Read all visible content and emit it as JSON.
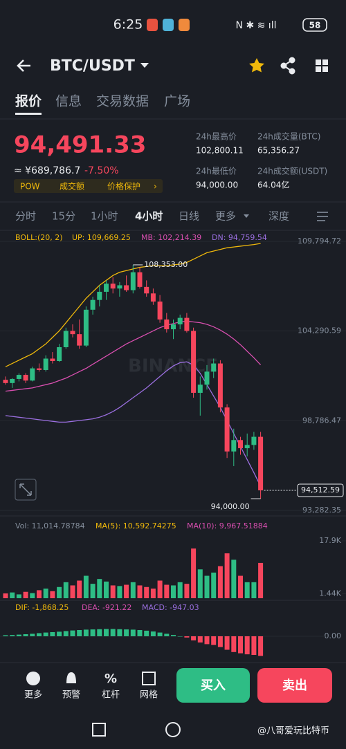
{
  "status_bar": {
    "time": "6:25",
    "battery": "58"
  },
  "header": {
    "pair": "BTC/USDT"
  },
  "tabs": [
    "报价",
    "信息",
    "交易数据",
    "广场"
  ],
  "price": {
    "last": "94,491.33",
    "cny": "≈ ¥689,786.7",
    "change": "-7.50%",
    "tags": [
      "POW",
      "成交额",
      "价格保护"
    ]
  },
  "stats": [
    {
      "label": "24h最高价",
      "value": "102,800.11"
    },
    {
      "label": "24h成交量(BTC)",
      "value": "65,356.27"
    },
    {
      "label": "24h最低价",
      "value": "94,000.00"
    },
    {
      "label": "24h成交额(USDT)",
      "value": "64.04亿"
    }
  ],
  "intervals": [
    "分时",
    "15分",
    "1小时",
    "4小时",
    "日线",
    "更多",
    "深度"
  ],
  "chart_data": {
    "type": "candlestick",
    "legend": [
      "BOLL:(20, 2)",
      "UP: 109,669.25",
      "MB: 102,214.39",
      "DN: 94,759.54"
    ],
    "watermark": "BINANCE",
    "ylim": [
      93282.35,
      109794.72
    ],
    "yticks": [
      {
        "value": 109794.72,
        "label": "109,794.72"
      },
      {
        "value": 104290.59,
        "label": "104,290.59"
      },
      {
        "value": 98786.47,
        "label": "98,786.47"
      },
      {
        "value": 93282.35,
        "label": "93,282.35"
      }
    ],
    "up_color": "#2ebd85",
    "down_color": "#f6465d",
    "ohlc": [
      [
        101300,
        101500,
        101000,
        101100
      ],
      [
        101100,
        101400,
        100800,
        101350
      ],
      [
        101350,
        101700,
        101200,
        101600
      ],
      [
        101600,
        101700,
        101100,
        101250
      ],
      [
        101250,
        102100,
        101200,
        102000
      ],
      [
        102000,
        102300,
        101800,
        101900
      ],
      [
        101900,
        102800,
        101800,
        102600
      ],
      [
        102600,
        103000,
        102300,
        102450
      ],
      [
        102450,
        103500,
        102400,
        103300
      ],
      [
        103300,
        104500,
        103200,
        104300
      ],
      [
        104300,
        104700,
        103900,
        104100
      ],
      [
        104100,
        105000,
        103200,
        103400
      ],
      [
        103400,
        105800,
        103300,
        105600
      ],
      [
        105600,
        106400,
        105300,
        106200
      ],
      [
        106200,
        107100,
        105800,
        106700
      ],
      [
        106700,
        107400,
        106200,
        107200
      ],
      [
        107200,
        107600,
        106600,
        106900
      ],
      [
        106900,
        107300,
        106400,
        107100
      ],
      [
        107100,
        107700,
        106700,
        106800
      ],
      [
        106800,
        108353,
        106600,
        107900
      ],
      [
        107900,
        108200,
        106900,
        107000
      ],
      [
        107000,
        107400,
        106400,
        106600
      ],
      [
        106600,
        106900,
        105900,
        106100
      ],
      [
        106100,
        106500,
        104800,
        105000
      ],
      [
        105000,
        105400,
        104200,
        104400
      ],
      [
        104400,
        105000,
        103800,
        104700
      ],
      [
        104700,
        105300,
        104400,
        105100
      ],
      [
        105100,
        105400,
        104200,
        104300
      ],
      [
        104300,
        104500,
        100200,
        100500
      ],
      [
        100500,
        101500,
        99100,
        101000
      ],
      [
        101000,
        102200,
        100700,
        101800
      ],
      [
        101800,
        102600,
        101400,
        102300
      ],
      [
        102300,
        102500,
        99300,
        99600
      ],
      [
        99600,
        99800,
        96500,
        96900
      ],
      [
        96900,
        98300,
        96000,
        97600
      ],
      [
        97600,
        97800,
        96700,
        97100
      ],
      [
        97100,
        98000,
        96600,
        97300
      ],
      [
        97300,
        98100,
        97000,
        97800
      ],
      [
        97800,
        98100,
        94000,
        94512.59
      ]
    ],
    "bands": [
      {
        "color": "#f0b90b",
        "values": [
          102100,
          102300,
          102500,
          102700,
          102900,
          103200,
          103500,
          103900,
          104300,
          104800,
          105300,
          105800,
          106300,
          106700,
          107100,
          107400,
          107700,
          107900,
          108000,
          108100,
          108200,
          108250,
          108300,
          108300,
          108300,
          108350,
          108400,
          108500,
          108700,
          108900,
          109100,
          109200,
          109300,
          109400,
          109450,
          109500,
          109550,
          109600,
          109669.25
        ]
      },
      {
        "color": "#d94fb0",
        "values": [
          100600,
          100650,
          100700,
          100750,
          100800,
          100900,
          101000,
          101100,
          101250,
          101400,
          101600,
          101800,
          102000,
          102250,
          102500,
          102750,
          103000,
          103250,
          103500,
          103700,
          103900,
          104100,
          104300,
          104500,
          104650,
          104750,
          104850,
          104900,
          104850,
          104800,
          104700,
          104550,
          104350,
          104100,
          103800,
          103450,
          103050,
          102650,
          102214.39
        ]
      },
      {
        "color": "#9b6fe0",
        "values": [
          99100,
          99050,
          99000,
          98950,
          98900,
          98850,
          98800,
          98750,
          98700,
          98700,
          98750,
          98800,
          98850,
          98900,
          99000,
          99150,
          99350,
          99600,
          99900,
          100200,
          100500,
          100800,
          101150,
          101500,
          101850,
          102150,
          102350,
          102400,
          102200,
          101700,
          101000,
          100300,
          99600,
          98800,
          98000,
          97200,
          96400,
          95600,
          94759.54
        ]
      }
    ],
    "annotations": {
      "high": {
        "value": 108353,
        "label": "108,353.00"
      },
      "low": {
        "value": 94000,
        "label": "94,000.00"
      },
      "current": {
        "value": 94512.59,
        "label": "94,512.59"
      }
    },
    "volume": {
      "legend": [
        "Vol: 11,014.78784",
        "MA(5): 10,592.74275",
        "MA(10): 9,967.51884"
      ],
      "ylim": [
        0,
        17900
      ],
      "yticks": [
        {
          "value": 17900,
          "label": "17.9K"
        },
        {
          "value": 1440,
          "label": "1.44K"
        }
      ],
      "values": [
        1500,
        1800,
        1200,
        2000,
        1600,
        2500,
        3000,
        2200,
        3500,
        5000,
        4000,
        5500,
        7000,
        4500,
        6000,
        5200,
        4000,
        3800,
        4200,
        5000,
        4000,
        3500,
        3000,
        5500,
        4200,
        4000,
        5000,
        4500,
        15500,
        9000,
        7000,
        8000,
        10000,
        14000,
        12000,
        7000,
        5000,
        5000,
        11014.78784
      ]
    },
    "macd": {
      "legend": [
        "DIF: -1,868.25",
        "DEA: -921.22",
        "MACD: -947.03"
      ],
      "ylim": [
        -1000,
        1000
      ],
      "yticks": [
        {
          "value": 0,
          "label": "0.00"
        }
      ],
      "values": [
        50,
        60,
        80,
        100,
        120,
        150,
        180,
        200,
        220,
        250,
        280,
        300,
        320,
        330,
        340,
        350,
        350,
        340,
        330,
        320,
        300,
        270,
        230,
        180,
        120,
        60,
        0,
        -60,
        -200,
        -300,
        -380,
        -420,
        -520,
        -650,
        -760,
        -820,
        -870,
        -900,
        -947.03
      ]
    }
  },
  "bottom": {
    "actions": [
      "更多",
      "预警",
      "杠杆",
      "网格"
    ],
    "buy": "买入",
    "sell": "卖出"
  },
  "watermark": "@八哥爱玩比特币"
}
